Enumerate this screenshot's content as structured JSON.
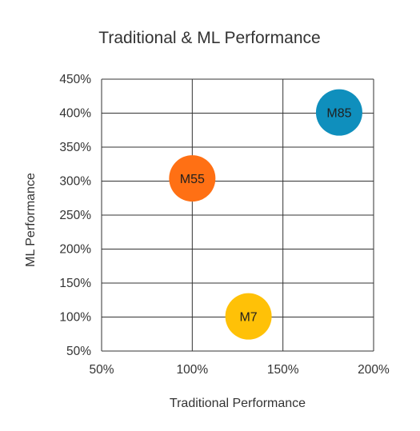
{
  "chart_data": {
    "type": "scatter",
    "title": "Traditional & ML Performance",
    "xlabel": "Traditional Performance",
    "ylabel": "ML Performance",
    "xlim": [
      50,
      200
    ],
    "ylim": [
      50,
      450
    ],
    "x_ticks": [
      50,
      100,
      150,
      200
    ],
    "y_ticks": [
      50,
      100,
      150,
      200,
      250,
      300,
      350,
      400,
      450
    ],
    "x_tick_labels": [
      "50%",
      "100%",
      "150%",
      "200%"
    ],
    "y_tick_labels": [
      "50%",
      "100%",
      "150%",
      "200%",
      "250%",
      "300%",
      "350%",
      "400%",
      "450%"
    ],
    "grid": true,
    "points": [
      {
        "label": "M85",
        "x": 181,
        "y": 401,
        "color": "#0f8fbd"
      },
      {
        "label": "M55",
        "x": 100,
        "y": 304,
        "color": "#ff7014"
      },
      {
        "label": "M7",
        "x": 131,
        "y": 101,
        "color": "#ffc107"
      }
    ]
  }
}
